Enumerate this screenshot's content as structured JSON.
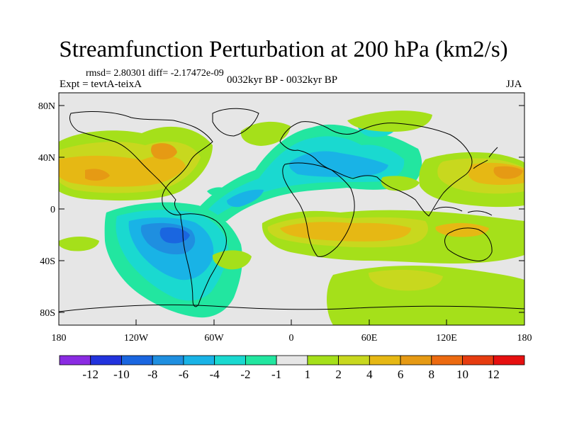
{
  "title": "Streamfunction Perturbation at 200 hPa (km2/s)",
  "stats_line": "rmsd= 2.80301 diff= -2.17472e-09",
  "experiment": "Expt = tevtA-teixA",
  "period": "0032kyr BP - 0032kyr BP",
  "season": "JJA",
  "axes": {
    "lat_ticks": [
      "80N",
      "40N",
      "0",
      "40S",
      "80S"
    ],
    "lon_ticks": [
      "180",
      "120W",
      "60W",
      "0",
      "60E",
      "120E",
      "180"
    ]
  },
  "colorbar": {
    "labels": [
      "-12",
      "-10",
      "-8",
      "-6",
      "-4",
      "-2",
      "-1",
      "1",
      "2",
      "4",
      "6",
      "8",
      "10",
      "12"
    ],
    "colors": [
      "#8a2be2",
      "#2233dd",
      "#1a66e0",
      "#1f8fe0",
      "#19b3e6",
      "#1ad9d0",
      "#22e6a0",
      "#e6e6e6",
      "#a5e01a",
      "#c8d81e",
      "#e6b814",
      "#e69a14",
      "#ec6a10",
      "#e63c10",
      "#e61010"
    ]
  },
  "map": {
    "background": "#e6e6e6",
    "coast_color": "#000000"
  }
}
